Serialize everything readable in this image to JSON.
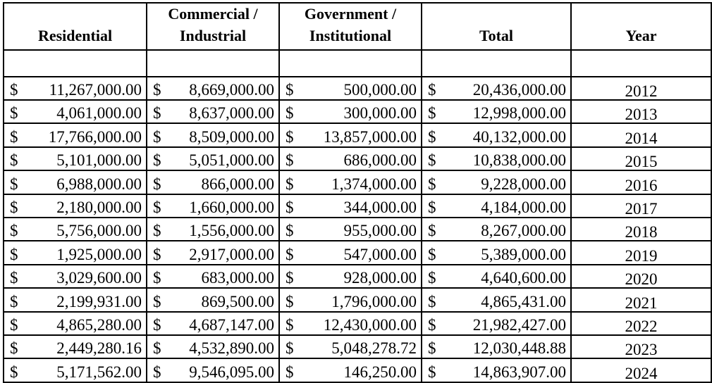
{
  "table": {
    "headers": [
      {
        "lines": [
          "Residential"
        ]
      },
      {
        "lines": [
          "Commercial /",
          "Industrial"
        ]
      },
      {
        "lines": [
          "Government /",
          "Institutional"
        ]
      },
      {
        "lines": [
          "Total"
        ]
      },
      {
        "lines": [
          "Year"
        ]
      }
    ],
    "currency_symbol": "$",
    "rows": [
      {
        "residential": "11,267,000.00",
        "commercial": "8,669,000.00",
        "government": "500,000.00",
        "total": "20,436,000.00",
        "year": "2012"
      },
      {
        "residential": "4,061,000.00",
        "commercial": "8,637,000.00",
        "government": "300,000.00",
        "total": "12,998,000.00",
        "year": "2013"
      },
      {
        "residential": "17,766,000.00",
        "commercial": "8,509,000.00",
        "government": "13,857,000.00",
        "total": "40,132,000.00",
        "year": "2014"
      },
      {
        "residential": "5,101,000.00",
        "commercial": "5,051,000.00",
        "government": "686,000.00",
        "total": "10,838,000.00",
        "year": "2015"
      },
      {
        "residential": "6,988,000.00",
        "commercial": "866,000.00",
        "government": "1,374,000.00",
        "total": "9,228,000.00",
        "year": "2016"
      },
      {
        "residential": "2,180,000.00",
        "commercial": "1,660,000.00",
        "government": "344,000.00",
        "total": "4,184,000.00",
        "year": "2017"
      },
      {
        "residential": "5,756,000.00",
        "commercial": "1,556,000.00",
        "government": "955,000.00",
        "total": "8,267,000.00",
        "year": "2018"
      },
      {
        "residential": "1,925,000.00",
        "commercial": "2,917,000.00",
        "government": "547,000.00",
        "total": "5,389,000.00",
        "year": "2019"
      },
      {
        "residential": "3,029,600.00",
        "commercial": "683,000.00",
        "government": "928,000.00",
        "total": "4,640,600.00",
        "year": "2020"
      },
      {
        "residential": "2,199,931.00",
        "commercial": "869,500.00",
        "government": "1,796,000.00",
        "total": "4,865,431.00",
        "year": "2021"
      },
      {
        "residential": "4,865,280.00",
        "commercial": "4,687,147.00",
        "government": "12,430,000.00",
        "total": "21,982,427.00",
        "year": "2022"
      },
      {
        "residential": "2,449,280.16",
        "commercial": "4,532,890.00",
        "government": "5,048,278.72",
        "total": "12,030,448.88",
        "year": "2023"
      },
      {
        "residential": "5,171,562.00",
        "commercial": "9,546,095.00",
        "government": "146,250.00",
        "total": "14,863,907.00",
        "year": "2024"
      }
    ]
  }
}
